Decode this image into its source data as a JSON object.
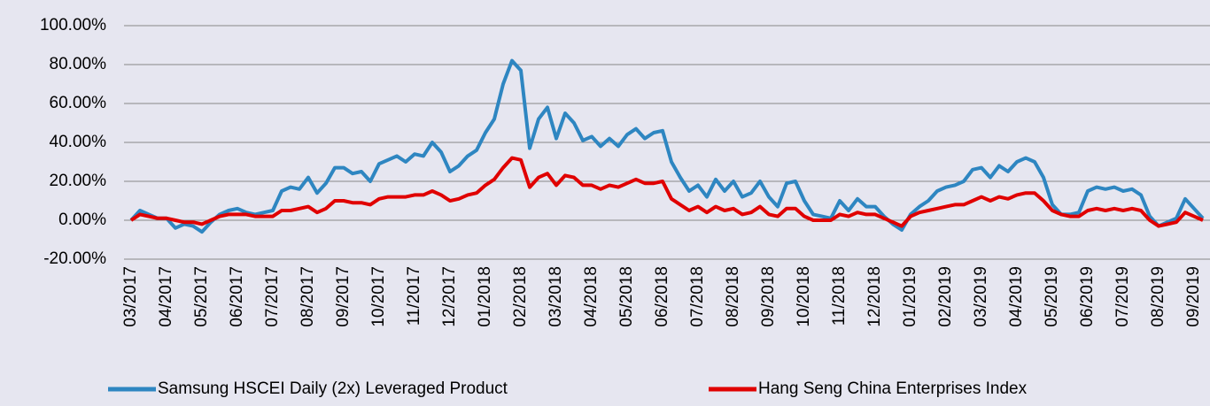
{
  "chart_data": {
    "type": "line",
    "categories": [
      "03/2017",
      null,
      null,
      null,
      "04/2017",
      null,
      null,
      null,
      "05/2017",
      null,
      null,
      null,
      "06/2017",
      null,
      null,
      null,
      "07/2017",
      null,
      null,
      null,
      "08/2017",
      null,
      null,
      null,
      "09/2017",
      null,
      null,
      null,
      "10/2017",
      null,
      null,
      null,
      "11/2017",
      null,
      null,
      null,
      "12/2017",
      null,
      null,
      null,
      "01/2018",
      null,
      null,
      null,
      "02/2018",
      null,
      null,
      null,
      "03/2018",
      null,
      null,
      null,
      "04/2018",
      null,
      null,
      null,
      "05/2018",
      null,
      null,
      null,
      "06/2018",
      null,
      null,
      null,
      "07/2018",
      null,
      null,
      null,
      "08/2018",
      null,
      null,
      null,
      "09/2018",
      null,
      null,
      null,
      "10/2018",
      null,
      null,
      null,
      "11/2018",
      null,
      null,
      null,
      "12/2018",
      null,
      null,
      null,
      "01/2019",
      null,
      null,
      null,
      "02/2019",
      null,
      null,
      null,
      "03/2019",
      null,
      null,
      null,
      "04/2019",
      null,
      null,
      null,
      "05/2019",
      null,
      null,
      null,
      "06/2019",
      null,
      null,
      null,
      "07/2019",
      null,
      null,
      null,
      "08/2019",
      null,
      null,
      null,
      "09/2019",
      null
    ],
    "series": [
      {
        "name": "Samsung HSCEI Daily (2x) Leveraged Product",
        "color": "#2e86c1",
        "values": [
          0,
          5,
          3,
          1,
          1,
          -4,
          -2,
          -3,
          -6,
          -1,
          3,
          5,
          6,
          4,
          3,
          4,
          5,
          15,
          17,
          16,
          22,
          14,
          19,
          27,
          27,
          24,
          25,
          20,
          29,
          31,
          33,
          30,
          34,
          33,
          40,
          35,
          25,
          28,
          33,
          36,
          45,
          52,
          70,
          82,
          77,
          37,
          52,
          58,
          42,
          55,
          50,
          41,
          43,
          38,
          42,
          38,
          44,
          47,
          42,
          45,
          46,
          30,
          22,
          15,
          18,
          12,
          21,
          15,
          20,
          12,
          14,
          20,
          12,
          7,
          19,
          20,
          10,
          3,
          2,
          1,
          10,
          5,
          11,
          7,
          7,
          2,
          -2,
          -5,
          3,
          7,
          10,
          15,
          17,
          18,
          20,
          26,
          27,
          22,
          28,
          25,
          30,
          32,
          30,
          22,
          8,
          3,
          3,
          4,
          15,
          17,
          16,
          17,
          15,
          16,
          13,
          2,
          -3,
          -1,
          1,
          11,
          6,
          1
        ]
      },
      {
        "name": "Hang Seng China Enterprises Index",
        "color": "#e00000",
        "values": [
          0,
          3,
          2,
          1,
          1,
          0,
          -1,
          -1,
          -2,
          0,
          2,
          3,
          3,
          3,
          2,
          2,
          2,
          5,
          5,
          6,
          7,
          4,
          6,
          10,
          10,
          9,
          9,
          8,
          11,
          12,
          12,
          12,
          13,
          13,
          15,
          13,
          10,
          11,
          13,
          14,
          18,
          21,
          27,
          32,
          31,
          17,
          22,
          24,
          18,
          23,
          22,
          18,
          18,
          16,
          18,
          17,
          19,
          21,
          19,
          19,
          20,
          11,
          8,
          5,
          7,
          4,
          7,
          5,
          6,
          3,
          4,
          7,
          3,
          2,
          6,
          6,
          2,
          0,
          0,
          0,
          3,
          2,
          4,
          3,
          3,
          1,
          -1,
          -3,
          2,
          4,
          5,
          6,
          7,
          8,
          8,
          10,
          12,
          10,
          12,
          11,
          13,
          14,
          14,
          10,
          5,
          3,
          2,
          2,
          5,
          6,
          5,
          6,
          5,
          6,
          5,
          0,
          -3,
          -2,
          -1,
          4,
          2,
          0
        ]
      }
    ],
    "ylim": [
      -20,
      100
    ],
    "yticks": [
      {
        "value": -20,
        "label": "-20.00%"
      },
      {
        "value": 0,
        "label": "0.00%"
      },
      {
        "value": 20,
        "label": "20.00%"
      },
      {
        "value": 40,
        "label": "40.00%"
      },
      {
        "value": 60,
        "label": "60.00%"
      },
      {
        "value": 80,
        "label": "80.00%"
      },
      {
        "value": 100,
        "label": "100.00%"
      }
    ],
    "grid": true,
    "legend": "bottom"
  }
}
